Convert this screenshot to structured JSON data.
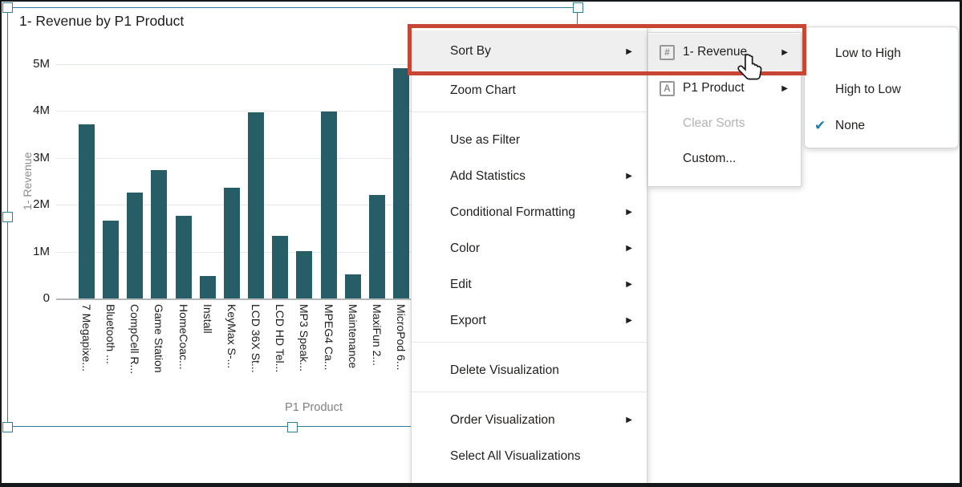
{
  "app": {
    "visualization_title": "1- Revenue by P1 Product"
  },
  "chart_data": {
    "type": "bar",
    "title": "1- Revenue by P1 Product",
    "xlabel": "P1 Product",
    "ylabel": "1- Revenue",
    "categories": [
      "7 Megapixe...",
      "Bluetooth ...",
      "CompCell R...",
      "Game Station",
      "HomeCoac...",
      "Install",
      "KeyMax S-...",
      "LCD 36X St...",
      "LCD HD Tel...",
      "MP3 Speak...",
      "MPEG4 Ca...",
      "Maintenance",
      "MaxiFun 2...",
      "MicroPod 6..."
    ],
    "values": [
      3.72,
      1.66,
      2.26,
      2.74,
      1.76,
      0.48,
      2.36,
      3.98,
      1.34,
      1.01,
      3.99,
      0.51,
      2.21,
      4.91
    ],
    "value_unit": "M",
    "y_ticks": [
      "0",
      "1M",
      "2M",
      "3M",
      "4M",
      "5M"
    ],
    "ylim": [
      0,
      5.2
    ],
    "grid": "horizontal",
    "legend": "none",
    "bar_color": "#265d66"
  },
  "context_menu": {
    "items": [
      {
        "label": "Sort By",
        "arrow": true,
        "highlighted": true
      },
      {
        "label": "Zoom Chart"
      },
      {
        "type": "divider"
      },
      {
        "label": "Use as Filter"
      },
      {
        "label": "Add Statistics",
        "arrow": true
      },
      {
        "label": "Conditional Formatting",
        "arrow": true
      },
      {
        "label": "Color",
        "arrow": true
      },
      {
        "label": "Edit",
        "arrow": true
      },
      {
        "label": "Export",
        "arrow": true
      },
      {
        "type": "divider"
      },
      {
        "label": "Delete Visualization"
      },
      {
        "type": "divider"
      },
      {
        "label": "Order Visualization",
        "arrow": true
      },
      {
        "label": "Select All Visualizations"
      }
    ]
  },
  "sort_by_submenu": {
    "items": [
      {
        "label": "1- Revenue",
        "icon": "number",
        "arrow": true,
        "highlighted": true
      },
      {
        "label": "P1 Product",
        "icon": "letter",
        "arrow": true
      },
      {
        "label": "Clear Sorts",
        "disabled": true
      },
      {
        "label": "Custom..."
      }
    ]
  },
  "sort_direction_submenu": {
    "items": [
      {
        "label": "Low to High"
      },
      {
        "label": "High to Low"
      },
      {
        "label": "None",
        "checked": true
      }
    ]
  },
  "icons": {
    "number_attribute": "#",
    "letter_attribute": "A",
    "submenu_arrow": "▶",
    "checkmark": "✔"
  },
  "colors": {
    "bar": "#265d66",
    "selection_teal": "#2e7e9b",
    "annotation_red": "#c74634",
    "checkmark_blue": "#1b7fae",
    "menu_hover": "#efefef",
    "disabled_text": "#b3b3b3"
  }
}
